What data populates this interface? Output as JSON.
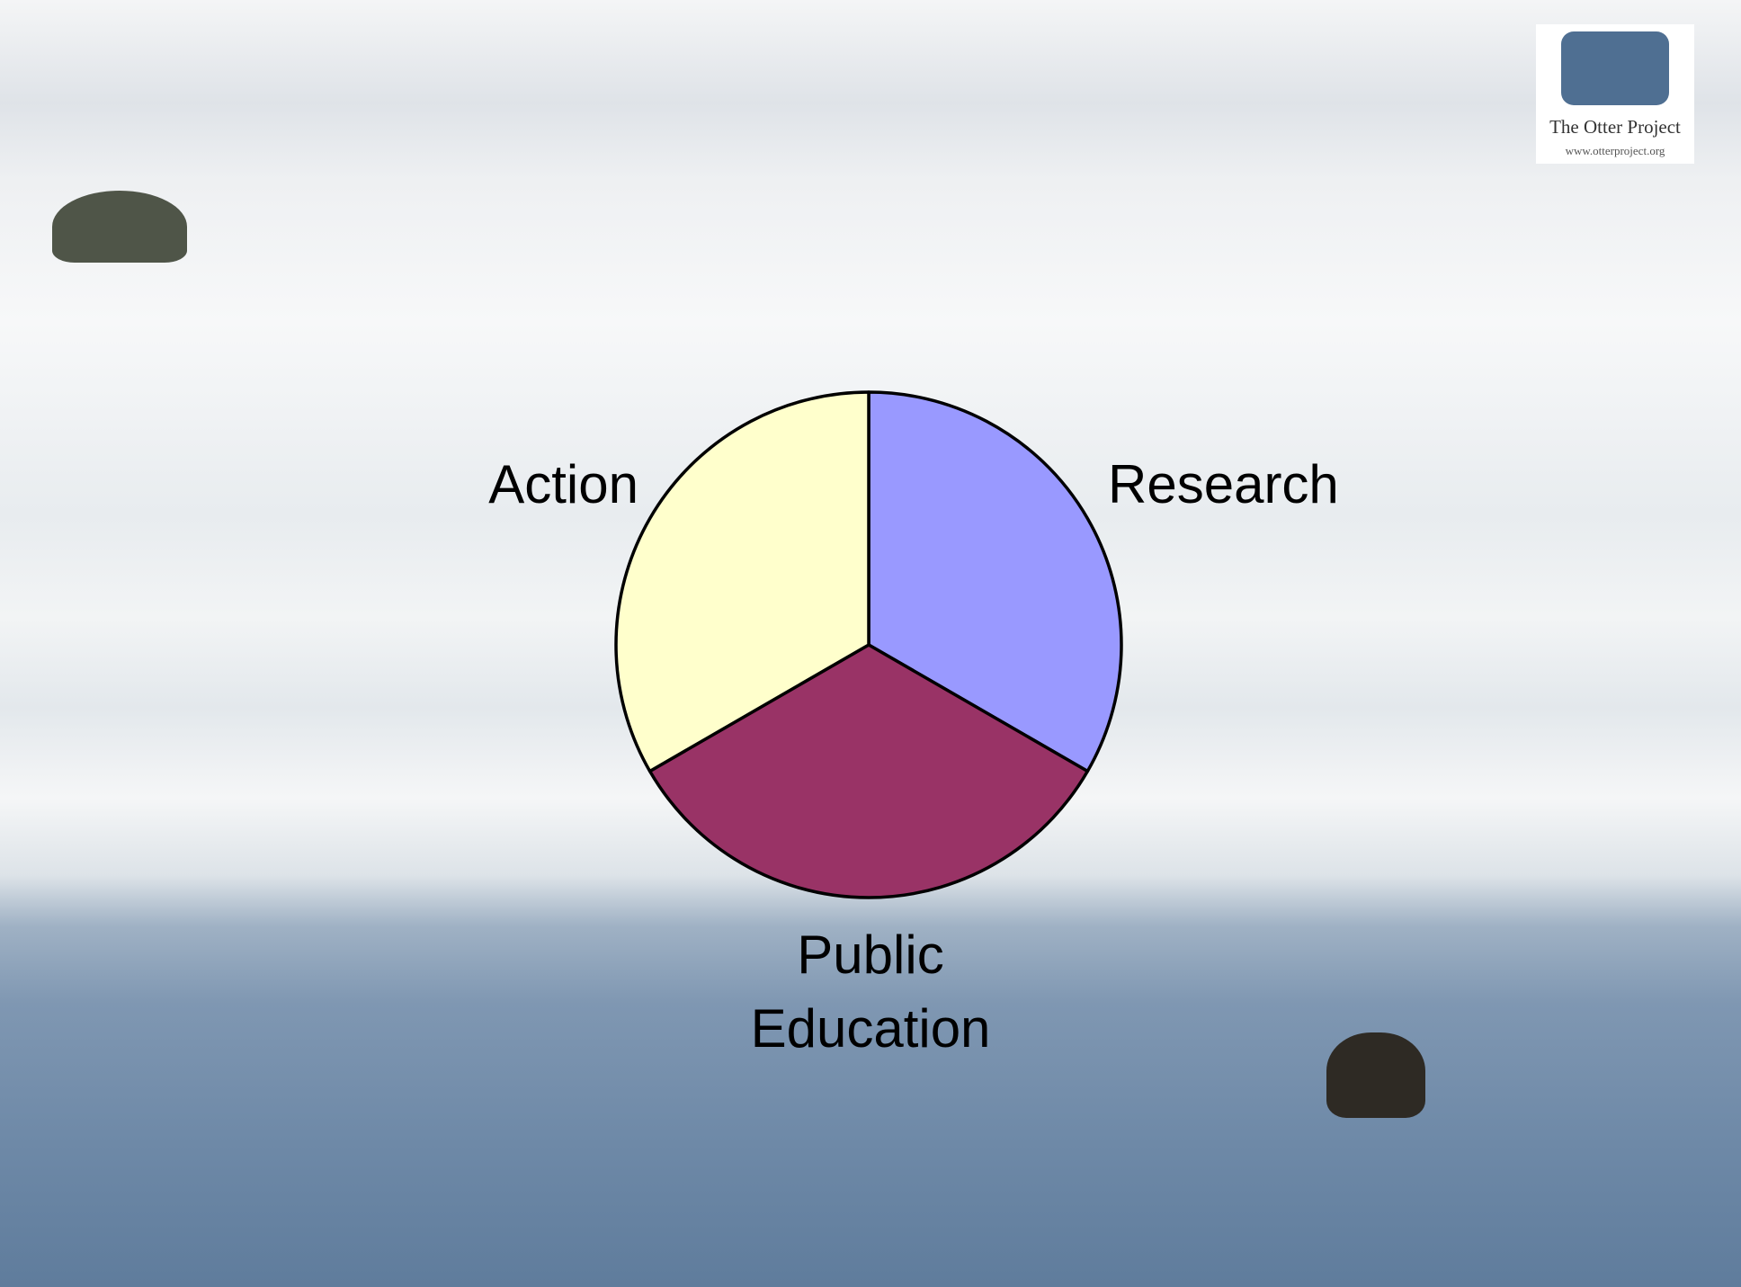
{
  "chart_data": {
    "type": "pie",
    "categories": [
      "Research",
      "Public Education",
      "Action"
    ],
    "values": [
      33.3,
      33.3,
      33.3
    ],
    "colors": [
      "#9999ff",
      "#993366",
      "#ffffcc"
    ]
  },
  "logo": {
    "title": "The Otter Project",
    "url": "www.otterproject.org"
  }
}
